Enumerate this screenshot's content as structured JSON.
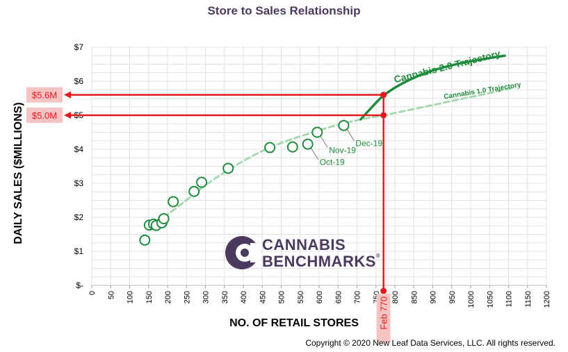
{
  "chart_data": {
    "type": "scatter",
    "title": "Store to Sales Relationship",
    "xlabel": "NO. OF RETAIL STORES",
    "ylabel": "DAILY SALES ($MILLIONS)",
    "xlim": [
      0,
      1200
    ],
    "ylim": [
      0,
      7
    ],
    "x_ticks": [
      "0",
      "50",
      "100",
      "150",
      "200",
      "250",
      "300",
      "350",
      "400",
      "450",
      "500",
      "550",
      "600",
      "650",
      "700",
      "750",
      "800",
      "850",
      "900",
      "950",
      "1000",
      "1050",
      "1100",
      "1150",
      "1200"
    ],
    "y_ticks": [
      "$-",
      "$1",
      "$2",
      "$3",
      "$4",
      "$5",
      "$6",
      "$7"
    ],
    "grid": true,
    "points": [
      {
        "x": 140,
        "y": 1.33
      },
      {
        "x": 152,
        "y": 1.77
      },
      {
        "x": 163,
        "y": 1.8
      },
      {
        "x": 170,
        "y": 1.76
      },
      {
        "x": 185,
        "y": 1.84
      },
      {
        "x": 190,
        "y": 1.96
      },
      {
        "x": 215,
        "y": 2.46
      },
      {
        "x": 270,
        "y": 2.76
      },
      {
        "x": 290,
        "y": 3.03
      },
      {
        "x": 360,
        "y": 3.44
      },
      {
        "x": 470,
        "y": 4.05
      },
      {
        "x": 530,
        "y": 4.07
      },
      {
        "x": 570,
        "y": 4.15
      },
      {
        "x": 595,
        "y": 4.5
      },
      {
        "x": 665,
        "y": 4.7
      }
    ],
    "point_labels": [
      {
        "text": "Oct-19",
        "x": 570,
        "y": 4.15
      },
      {
        "text": "Nov-19",
        "x": 595,
        "y": 4.5
      },
      {
        "text": "Dec-19",
        "x": 665,
        "y": 4.7
      }
    ],
    "series": [
      {
        "name": "Cannabis 1.0 Trajectory",
        "style": "dashed",
        "x": [
          190,
          250,
          300,
          360,
          430,
          500,
          570,
          640,
          710,
          770,
          850,
          950,
          1050,
          1110
        ],
        "y": [
          2.0,
          2.5,
          2.95,
          3.4,
          3.85,
          4.2,
          4.45,
          4.7,
          4.88,
          5.0,
          5.18,
          5.42,
          5.65,
          5.8
        ]
      },
      {
        "name": "Cannabis 2.0 Trajectory",
        "style": "solid",
        "x": [
          710,
          740,
          770,
          820,
          880,
          950,
          1020,
          1090
        ],
        "y": [
          4.88,
          5.25,
          5.6,
          5.95,
          6.25,
          6.48,
          6.63,
          6.75
        ]
      }
    ],
    "annotations": {
      "vline": {
        "x": 770,
        "label": "Feb 770"
      },
      "hlines": [
        {
          "y": 5.6,
          "label": "$5.6M"
        },
        {
          "y": 5.0,
          "label": "$5.0M"
        }
      ]
    },
    "colors": {
      "scatter": "#1e8a3c",
      "trajectory_1": "#a8d8b2",
      "trajectory_2": "#1e8a3c",
      "annotation": "#e31a1c",
      "annotation_fill": "#f6c3c3",
      "grid": "#e0e0e0",
      "title": "#4a3a5e"
    }
  },
  "logo": {
    "line1": "CANNABIS",
    "line2": "BENCHMARKS",
    "mark": "®"
  },
  "copyright": "Copyright  © 2020  New Leaf Data Services, LLC.  All rights reserved."
}
